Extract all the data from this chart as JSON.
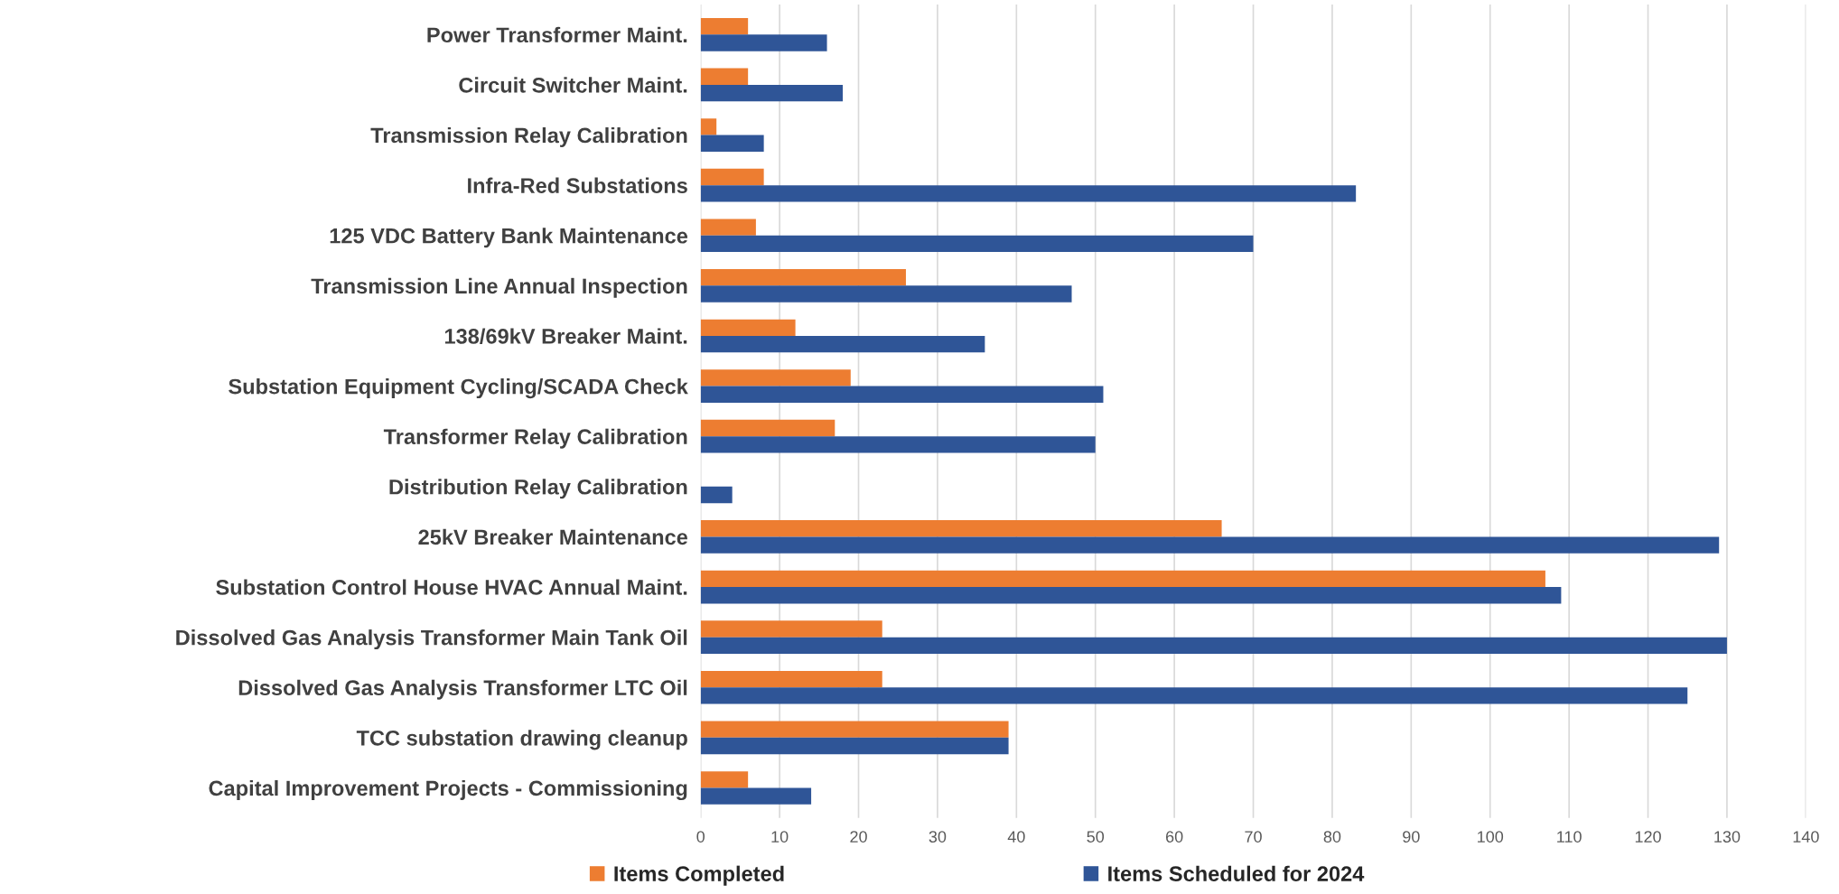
{
  "chart_data": {
    "type": "bar",
    "orientation": "horizontal",
    "categories": [
      "Power Transformer Maint.",
      "Circuit Switcher Maint.",
      "Transmission Relay Calibration",
      "Infra-Red Substations",
      "125 VDC Battery Bank Maintenance",
      "Transmission Line Annual Inspection",
      "138/69kV Breaker Maint.",
      "Substation Equipment Cycling/SCADA Check",
      "Transformer Relay Calibration",
      "Distribution Relay Calibration",
      "25kV Breaker Maintenance",
      "Substation Control House HVAC Annual Maint.",
      "Dissolved Gas Analysis Transformer Main Tank Oil",
      "Dissolved Gas Analysis Transformer LTC Oil",
      "TCC substation drawing cleanup",
      "Capital Improvement Projects - Commissioning"
    ],
    "series": [
      {
        "name": "Items Completed",
        "color": "#ed7d31",
        "values": [
          6,
          6,
          2,
          8,
          7,
          26,
          12,
          19,
          17,
          0,
          66,
          107,
          23,
          23,
          39,
          6
        ]
      },
      {
        "name": "Items Scheduled for 2024",
        "color": "#2f5597",
        "values": [
          16,
          18,
          8,
          83,
          70,
          47,
          36,
          51,
          50,
          4,
          129,
          109,
          130,
          125,
          39,
          14
        ]
      }
    ],
    "xlim": [
      0,
      140
    ],
    "xticks": [
      0,
      10,
      20,
      30,
      40,
      50,
      60,
      70,
      80,
      90,
      100,
      110,
      120,
      130,
      140
    ],
    "grid": "x",
    "legend": "bottom"
  }
}
